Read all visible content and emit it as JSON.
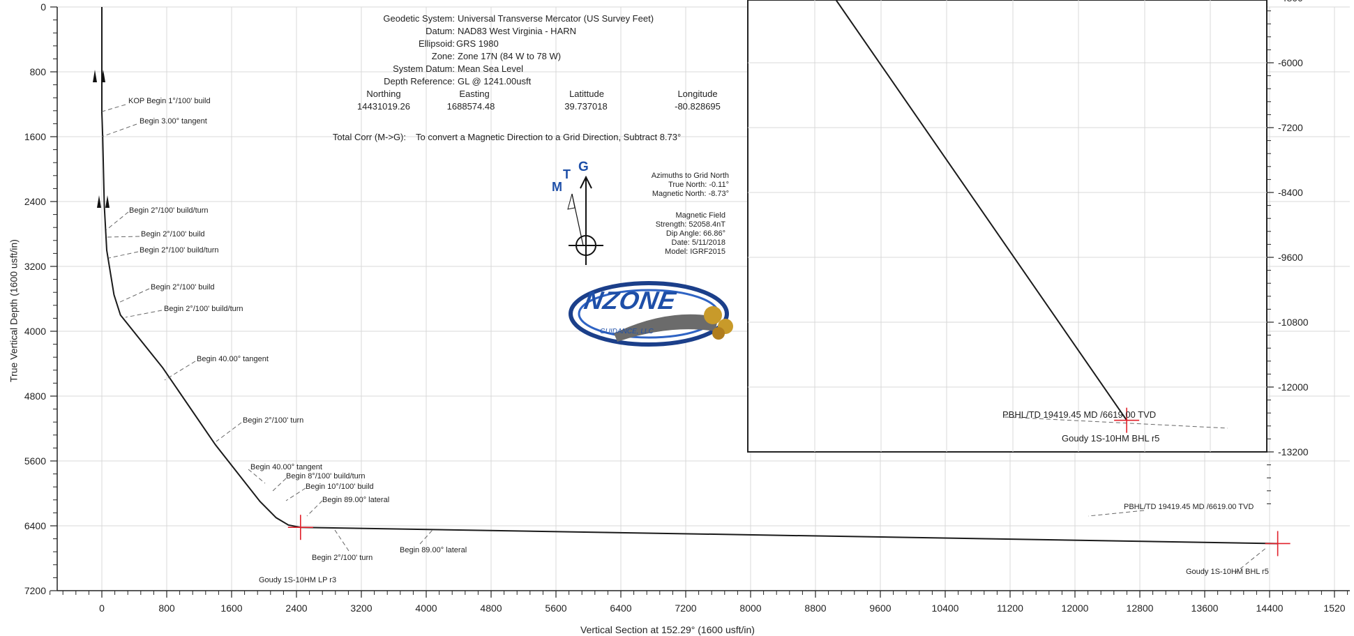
{
  "chart_data": {
    "type": "line",
    "xlabel": "Vertical Section at 152.29° (1600 usft/in)",
    "ylabel": "True Vertical Depth (1600 usft/in)",
    "x_ticks": [
      "0",
      "800",
      "1600",
      "2400",
      "3200",
      "4000",
      "4800",
      "5600",
      "6400",
      "7200",
      "8000",
      "8800",
      "9600",
      "10400",
      "11200",
      "12000",
      "12800",
      "13600",
      "14400",
      "1520"
    ],
    "y_ticks": [
      "0",
      "800",
      "1600",
      "2400",
      "3200",
      "4000",
      "4800",
      "5600",
      "6400",
      "7200"
    ],
    "inset_y_ticks": [
      "-4800",
      "-6000",
      "-7200",
      "-8400",
      "-9600",
      "-10800",
      "-12000",
      "-13200"
    ],
    "series": [
      {
        "x": [
          0,
          0,
          10,
          30,
          60,
          150,
          230,
          750,
          1400,
          1950,
          2150,
          2300,
          2450,
          14500
        ],
        "y": [
          0,
          1300,
          1600,
          2450,
          3000,
          3550,
          3800,
          4450,
          5400,
          6100,
          6300,
          6390,
          6419,
          6619
        ]
      }
    ],
    "inset_series": [
      {
        "x": [
          0.17,
          0.73
        ],
        "y": [
          0.0,
          0.93
        ]
      }
    ],
    "annotations": [
      "KOP Begin 1°/100' build",
      "Begin 3.00° tangent",
      "Begin 2°/100' build/turn",
      "Begin 2°/100' build",
      "Begin 2°/100' build/turn",
      "Begin 2°/100' build",
      "Begin 2°/100' build/turn",
      "Begin 40.00° tangent",
      "Begin 2°/100' turn",
      "Begin 40.00° tangent",
      "Begin 8°/100' build/turn",
      "Begin 10°/100' build",
      "Begin 89.00° lateral",
      "Begin 2°/100' turn",
      "Begin 89.00° lateral",
      "Goudy 1S-10HM LP r3",
      "PBHL/TD 19419.45 MD /6619.00 TVD",
      "Goudy 1S-10HM BHL r5"
    ],
    "inset_annotations": [
      "PBHL/TD 19419.45 MD /6619.00 TVD",
      "Goudy 1S-10HM BHL r5"
    ]
  },
  "geodetic": {
    "system_label": "Geodetic System:",
    "system_value": "Universal Transverse Mercator (US Survey Feet)",
    "datum_label": "Datum:",
    "datum_value": "NAD83 West Virginia - HARN",
    "ellipsoid_label": "Ellipsoid:",
    "ellipsoid_value": "GRS 1980",
    "zone_label": "Zone:",
    "zone_value": "Zone 17N (84 W to 78 W)",
    "sysdatum_label": "System Datum:",
    "sysdatum_value": "Mean Sea Level",
    "depthref_label": "Depth Reference:",
    "depthref_value": "GL @ 1241.00usft",
    "northing_label": "Northing",
    "northing_value": "14431019.26",
    "easting_label": "Easting",
    "easting_value": "1688574.48",
    "latitude_label": "Latittude",
    "latitude_value": "39.737018",
    "longitude_label": "Longitude",
    "longitude_value": "-80.828695",
    "totalcorr_label": "Total Corr (M->G):",
    "totalcorr_value": "To convert a Magnetic Direction to a Grid Direction, Subtract 8.73°"
  },
  "north_arrow": {
    "m": "M",
    "t": "T",
    "g": "G"
  },
  "azimuths": {
    "title": "Azimuths to Grid North",
    "true_north": "True North: -0.11°",
    "magnetic_north": "Magnetic North: -8.73°"
  },
  "magnetic": {
    "title": "Magnetic Field",
    "strength": "Strength: 52058.4nT",
    "dip": "Dip Angle: 66.86°",
    "date": "Date: 5/11/2018",
    "model": "Model: IGRF2015"
  },
  "logo": {
    "text": "NZONE",
    "sub": "GUIDANCE, LLC"
  },
  "colors": {
    "line": "#1a1a1a",
    "grid": "#d8d8d8",
    "target": "#e0202a",
    "logo_blue": "#1e4fa8",
    "logo_gold": "#c89a2a"
  }
}
